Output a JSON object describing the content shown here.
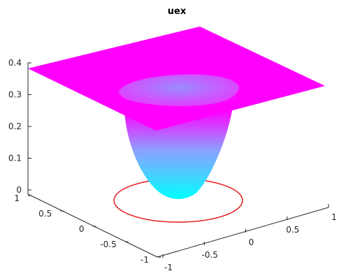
{
  "chart_data": {
    "type": "surface",
    "title": "uex",
    "xlim": [
      -1,
      1
    ],
    "ylim": [
      -1,
      1
    ],
    "zlim": [
      0,
      0.4
    ],
    "xticks": [
      "-1",
      "-0.5",
      "0",
      "0.5",
      "1"
    ],
    "yticks": [
      "-1",
      "-0.5",
      "0",
      "0.5",
      "1"
    ],
    "zticks": [
      "0",
      "0.1",
      "0.2",
      "0.3",
      "0.4"
    ],
    "surface": {
      "description_points": [
        {
          "x": -1,
          "y": -1,
          "z": 0.33
        },
        {
          "x": 1,
          "y": -1,
          "z": 0.32
        },
        {
          "x": 1,
          "y": 1,
          "z": 0.38
        },
        {
          "x": -1,
          "y": 1,
          "z": 0.34
        },
        {
          "x": 0,
          "y": 0,
          "z": 0.0
        }
      ],
      "well_radius": 0.5,
      "well_min": 0.0,
      "plateau": 0.32
    },
    "interface_circle": {
      "radius": 0.5,
      "z": 0,
      "color": "#e31a1c"
    },
    "grid": false,
    "colors": {
      "low": "#00ffff",
      "high": "#ff00ff",
      "circle": "#e31a1c"
    }
  }
}
